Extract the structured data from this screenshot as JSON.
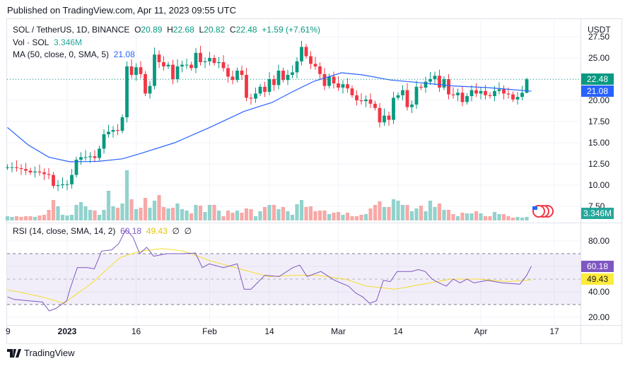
{
  "published": "Published on TradingView.com, Apr 11, 2023 09:55 UTC",
  "legend": {
    "symbol": "SOL / TetherUS, 1D, BINANCE",
    "o_label": "O",
    "o": "20.89",
    "h_label": "H",
    "h": "22.68",
    "l_label": "L",
    "l": "20.82",
    "c_label": "C",
    "c": "22.48",
    "change": "+1.59 (+7.61%)",
    "vol_label": "Vol · SOL",
    "vol": "3.346M",
    "ma_label": "MA (50, close, 0, SMA, 5)",
    "ma": "21.08",
    "rsi_label": "RSI (14, close, SMA, 14, 2)",
    "rsi": "60.18",
    "rsi_ma": "49.43",
    "rsi_extra1": "∅",
    "rsi_extra2": "∅"
  },
  "price_axis": {
    "unit": "USDT",
    "ticks": [
      "27.50",
      "25.00",
      "22.50",
      "20.00",
      "17.50",
      "15.00",
      "12.50",
      "10.00",
      "7.50"
    ]
  },
  "rsi_axis": {
    "ticks": [
      "80.00",
      "60.00",
      "40.00",
      "20.00"
    ]
  },
  "badges": {
    "last": "22.48",
    "ma": "21.08",
    "volume": "3.346M",
    "rsi": "60.18",
    "rsi_ma": "49.43"
  },
  "time_axis": [
    {
      "label": "9",
      "i": -1
    },
    {
      "label": "2023",
      "i": 13,
      "bold": true
    },
    {
      "label": "16",
      "i": 28
    },
    {
      "label": "Feb",
      "i": 44
    },
    {
      "label": "14",
      "i": 57
    },
    {
      "label": "Mar",
      "i": 72
    },
    {
      "label": "14",
      "i": 85
    },
    {
      "label": "Apr",
      "i": 103
    },
    {
      "label": "17",
      "i": 119
    }
  ],
  "footer": {
    "brand": "TradingView"
  },
  "colors": {
    "up": "#089981",
    "down": "#f23645",
    "ma": "#2962ff",
    "rsi": "#7e57c2",
    "rsi_ma": "#f5dd2b",
    "vol_up": "#92d2cc",
    "vol_down": "#f7a9a7"
  },
  "chart_data": {
    "type": "candlestick",
    "first_date": "Dec 19, 2022",
    "last_date": "Apr 11, 2023",
    "first_open": 12.1,
    "last_candle": {
      "o": 20.89,
      "h": 22.68,
      "l": 20.82,
      "c": 22.48
    },
    "close": [
      12.1,
      12.1,
      12.0,
      11.9,
      11.7,
      11.5,
      11.6,
      11.5,
      11.3,
      11.2,
      9.9,
      10.0,
      10.1,
      10.1,
      11.2,
      13.0,
      13.3,
      13.3,
      13.4,
      13.2,
      14.3,
      16.0,
      16.3,
      16.5,
      16.4,
      18.0,
      24.0,
      23.0,
      23.9,
      23.1,
      20.8,
      21.7,
      25.4,
      24.5,
      24.0,
      24.2,
      22.5,
      24.0,
      24.2,
      24.2,
      23.8,
      25.6,
      24.5,
      24.6,
      25.0,
      24.4,
      24.5,
      23.8,
      22.8,
      22.4,
      23.5,
      23.0,
      20.3,
      20.2,
      20.8,
      21.6,
      21.0,
      22.5,
      21.8,
      23.5,
      22.4,
      23.0,
      23.3,
      24.6,
      26.3,
      25.2,
      24.3,
      24.0,
      23.1,
      21.7,
      22.8,
      22.0,
      21.5,
      21.9,
      21.4,
      20.6,
      20.0,
      19.9,
      20.1,
      19.6,
      19.1,
      17.4,
      18.2,
      17.7,
      20.3,
      20.6,
      21.2,
      19.2,
      19.5,
      21.6,
      21.5,
      22.2,
      22.5,
      22.9,
      21.5,
      22.5,
      20.7,
      20.6,
      20.9,
      19.8,
      20.5,
      21.2,
      20.8,
      21.1,
      20.6,
      20.5,
      21.1,
      21.3,
      20.8,
      20.7,
      20.1,
      20.4,
      20.89,
      22.48
    ],
    "volume_m": [
      4.2,
      3.5,
      4.2,
      3.5,
      4.2,
      4.2,
      3.5,
      4.9,
      5.6,
      10.5,
      20.3,
      14,
      5.6,
      4.9,
      5.6,
      15.4,
      18.2,
      14,
      10.5,
      9.8,
      5.6,
      10.5,
      29.4,
      14,
      12.6,
      16.8,
      49.7,
      21,
      11.2,
      12.6,
      22.4,
      12.6,
      19.6,
      25.2,
      13.3,
      11.9,
      12.6,
      16.8,
      11.2,
      9.8,
      7,
      15.4,
      14.7,
      8.4,
      15.4,
      15.4,
      9.8,
      4.2,
      9.8,
      7.7,
      9.8,
      7.7,
      11.9,
      11.2,
      4.2,
      9.1,
      13.3,
      15.4,
      15.4,
      11.2,
      13.3,
      9.1,
      5.6,
      16.1,
      20.3,
      13.3,
      14,
      9.1,
      9.8,
      9.8,
      6.3,
      7.7,
      8.4,
      5.6,
      7.7,
      4.2,
      4.2,
      5.6,
      6.3,
      11.9,
      15.4,
      18.9,
      13.3,
      13.3,
      21,
      19.6,
      15.4,
      15.4,
      9.1,
      11.9,
      14.7,
      9.1,
      19.6,
      13.3,
      16.8,
      10.5,
      10.5,
      6.3,
      4.2,
      7.7,
      7,
      7,
      9.1,
      7,
      4.2,
      4.2,
      8.4,
      6.3,
      6.3,
      4.2,
      2.8,
      3.5,
      2.8,
      3.5,
      3.346
    ],
    "ma50": [
      [
        0,
        16.8
      ],
      [
        4.5,
        14.75
      ],
      [
        9,
        13.3
      ],
      [
        13.6,
        12.75
      ],
      [
        19.7,
        12.8
      ],
      [
        25,
        13.1
      ],
      [
        28.8,
        13.7
      ],
      [
        36.4,
        15.0
      ],
      [
        44,
        16.8
      ],
      [
        51.5,
        18.7
      ],
      [
        57.6,
        19.75
      ],
      [
        62,
        21
      ],
      [
        66.7,
        22.25
      ],
      [
        72.7,
        23.25
      ],
      [
        77.3,
        23.0
      ],
      [
        83.3,
        22.4
      ],
      [
        89.4,
        22.1
      ],
      [
        97,
        21.7
      ],
      [
        104.5,
        21.5
      ],
      [
        114,
        21.08
      ]
    ],
    "rsi": [
      [
        0,
        36
      ],
      [
        1.5,
        34
      ],
      [
        4.5,
        33
      ],
      [
        7.6,
        32
      ],
      [
        9.1,
        25
      ],
      [
        10.6,
        27
      ],
      [
        12.9,
        33
      ],
      [
        13.6,
        42
      ],
      [
        15.2,
        59
      ],
      [
        17.4,
        59
      ],
      [
        18.9,
        58
      ],
      [
        20.5,
        72
      ],
      [
        22.7,
        73
      ],
      [
        24.2,
        77.8
      ],
      [
        25.8,
        89
      ],
      [
        27.3,
        83
      ],
      [
        28.8,
        70
      ],
      [
        30.3,
        75
      ],
      [
        31.8,
        68
      ],
      [
        34.8,
        70
      ],
      [
        37.9,
        70
      ],
      [
        40.9,
        70.5
      ],
      [
        42.4,
        59
      ],
      [
        43.9,
        62
      ],
      [
        47,
        59
      ],
      [
        50,
        62
      ],
      [
        51.5,
        42
      ],
      [
        53,
        42
      ],
      [
        56,
        53
      ],
      [
        59.1,
        52
      ],
      [
        62.1,
        59
      ],
      [
        63.6,
        61
      ],
      [
        65.2,
        52
      ],
      [
        68.2,
        56
      ],
      [
        71.2,
        49
      ],
      [
        74.2,
        44.5
      ],
      [
        75.8,
        39
      ],
      [
        77.3,
        36
      ],
      [
        78.8,
        31
      ],
      [
        80.3,
        33
      ],
      [
        81.8,
        49
      ],
      [
        83.3,
        48
      ],
      [
        84.8,
        56
      ],
      [
        87.9,
        56
      ],
      [
        89.4,
        57.5
      ],
      [
        90.9,
        56
      ],
      [
        92.4,
        50
      ],
      [
        93.9,
        47
      ],
      [
        95.5,
        44.5
      ],
      [
        97,
        50
      ],
      [
        98.5,
        47
      ],
      [
        100,
        50
      ],
      [
        101.5,
        47
      ],
      [
        104.5,
        49
      ],
      [
        107.6,
        47
      ],
      [
        111.5,
        46
      ],
      [
        113,
        53
      ],
      [
        114,
        60.18
      ]
    ],
    "rsi_ma": [
      [
        0,
        41.7
      ],
      [
        7.6,
        36
      ],
      [
        12.3,
        31
      ],
      [
        18.4,
        47
      ],
      [
        24.5,
        67
      ],
      [
        29,
        72
      ],
      [
        33.7,
        74
      ],
      [
        38.3,
        72
      ],
      [
        44.5,
        64
      ],
      [
        50.6,
        58
      ],
      [
        56.8,
        52
      ],
      [
        62.8,
        53
      ],
      [
        67.4,
        53
      ],
      [
        73.5,
        50
      ],
      [
        78.1,
        44.5
      ],
      [
        84.3,
        42
      ],
      [
        90.4,
        46
      ],
      [
        96.5,
        50
      ],
      [
        102.6,
        50
      ],
      [
        108.8,
        48
      ],
      [
        114,
        49.43
      ]
    ],
    "rsi_bands": [
      70,
      50,
      30
    ],
    "price_range": [
      6.6,
      28.2
    ],
    "rsi_range": [
      12,
      96
    ]
  }
}
